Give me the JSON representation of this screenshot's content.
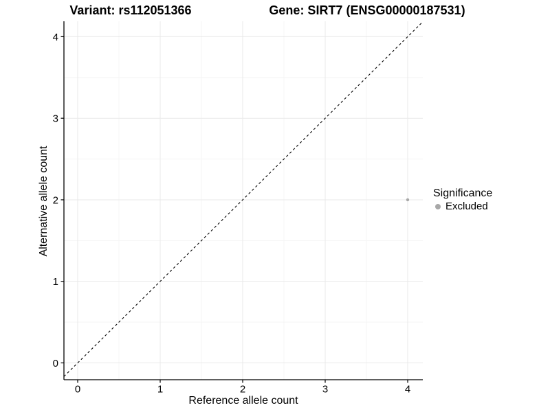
{
  "chart_data": {
    "type": "scatter",
    "titles": {
      "left": "Variant: rs112051366",
      "right": "Gene: SIRT7 (ENSG00000187531)"
    },
    "xlabel": "Reference allele count",
    "ylabel": "Alternative allele count",
    "x_ticks": [
      0,
      1,
      2,
      3,
      4
    ],
    "y_ticks": [
      0,
      1,
      2,
      3,
      4
    ],
    "xlim": [
      -0.17,
      4.18
    ],
    "ylim": [
      -0.21,
      4.19
    ],
    "grid": {
      "major": true,
      "minor": true
    },
    "points": [
      {
        "x": 4,
        "y": 2,
        "series": "Excluded"
      }
    ],
    "reference_line": {
      "type": "identity y=x",
      "style": "dashed",
      "color": "#000000"
    },
    "legend": {
      "title": "Significance",
      "position": "right",
      "entries": [
        {
          "label": "Excluded",
          "color": "#a8a8a8"
        }
      ]
    },
    "colors": {
      "point": "#a8a8a8",
      "axis": "#000000",
      "text": "#000000",
      "grid_major": "#e9e9e9",
      "grid_minor": "#f5f5f5",
      "background": "#ffffff"
    }
  }
}
